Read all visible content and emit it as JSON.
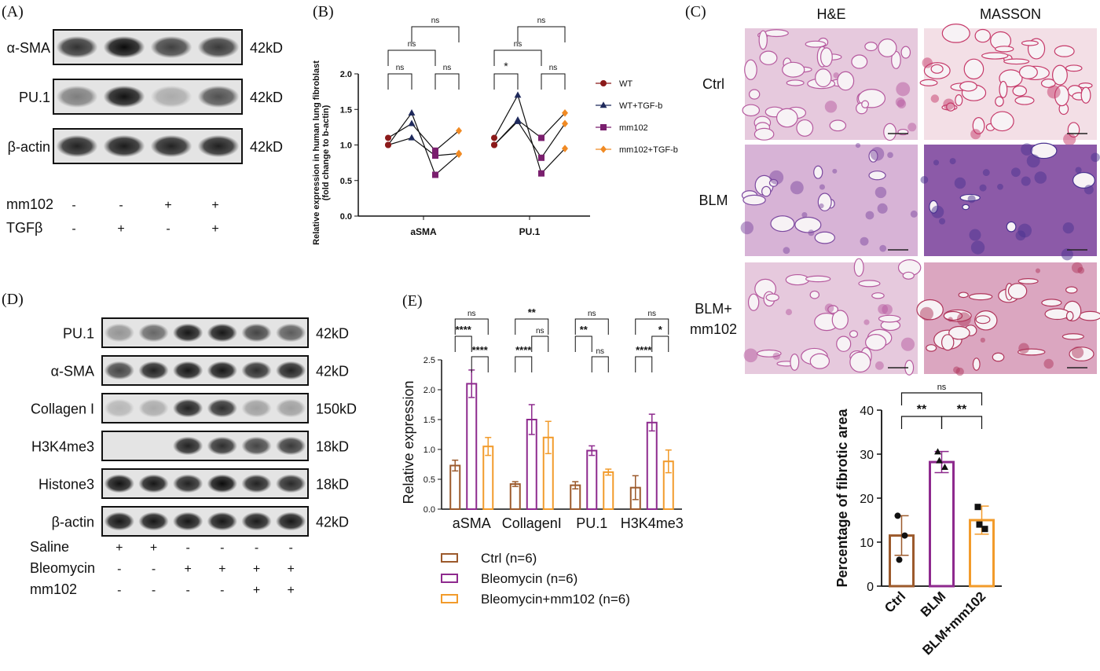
{
  "panels": {
    "A": "(A)",
    "B": "(B)",
    "C": "(C)",
    "D": "(D)",
    "E": "(E)"
  },
  "panel_a": {
    "bands": [
      {
        "label": "α-SMA",
        "size": "42kD",
        "intensity": [
          0.78,
          0.95,
          0.72,
          0.75
        ]
      },
      {
        "label": "PU.1",
        "size": "42kD",
        "intensity": [
          0.45,
          0.92,
          0.25,
          0.65
        ]
      },
      {
        "label": "β-actin",
        "size": "42kD",
        "intensity": [
          0.85,
          0.88,
          0.85,
          0.86
        ]
      }
    ],
    "conditions": [
      {
        "label": "mm102",
        "marks": [
          "-",
          "-",
          "+",
          "+"
        ]
      },
      {
        "label": "TGFβ",
        "marks": [
          "-",
          "+",
          "-",
          "+"
        ]
      }
    ]
  },
  "panel_d": {
    "bands": [
      {
        "label": "PU.1",
        "size": "42kD",
        "intensity": [
          0.35,
          0.55,
          0.9,
          0.9,
          0.7,
          0.6
        ]
      },
      {
        "label": "α-SMA",
        "size": "42kD",
        "intensity": [
          0.7,
          0.85,
          0.9,
          0.9,
          0.8,
          0.85
        ]
      },
      {
        "label": "Collagen I",
        "size": "150kD",
        "intensity": [
          0.2,
          0.25,
          0.85,
          0.8,
          0.3,
          0.3
        ]
      },
      {
        "label": "H3K4me3",
        "size": "18kD",
        "intensity": [
          0.02,
          0.02,
          0.85,
          0.8,
          0.7,
          0.75
        ]
      },
      {
        "label": "Histone3",
        "size": "18kD",
        "intensity": [
          0.92,
          0.9,
          0.85,
          0.95,
          0.85,
          0.82
        ]
      },
      {
        "label": "β-actin",
        "size": "42kD",
        "intensity": [
          0.9,
          0.9,
          0.9,
          0.9,
          0.88,
          0.9
        ]
      }
    ],
    "conditions": [
      {
        "label": "Saline",
        "marks": [
          "+",
          "+",
          "-",
          "-",
          "-",
          "-"
        ]
      },
      {
        "label": "Bleomycin",
        "marks": [
          "-",
          "-",
          "+",
          "+",
          "+",
          "+"
        ]
      },
      {
        "label": "mm102",
        "marks": [
          "-",
          "-",
          "-",
          "-",
          "+",
          "+"
        ]
      }
    ]
  },
  "panel_c": {
    "columns": [
      "H&E",
      "MASSON"
    ],
    "rows": [
      "Ctrl",
      "BLM",
      "BLM+\nmm102"
    ]
  },
  "chart_data": [
    {
      "id": "B",
      "type": "scatter",
      "ylabel": "Relative expression in human lung fibroblast\n(fold change to b-actin)",
      "ylim": [
        0,
        2.0
      ],
      "yticks": [
        "0.0",
        "0.5",
        "1.0",
        "1.5",
        "2.0"
      ],
      "categories": [
        "aSMA",
        "PU.1"
      ],
      "series": [
        {
          "name": "WT",
          "color": "#8b1a1a",
          "marker": "circle",
          "values": [
            [
              1.0,
              1.1,
              1.0
            ],
            [
              1.0,
              1.1,
              1.0
            ]
          ]
        },
        {
          "name": "WT+TGF-b",
          "color": "#1f2a5c",
          "marker": "triangle",
          "values": [
            [
              1.1,
              1.3,
              1.45
            ],
            [
              1.35,
              1.7,
              1.33
            ]
          ]
        },
        {
          "name": "mm102",
          "color": "#7a1f6e",
          "marker": "square",
          "values": [
            [
              0.85,
              0.92,
              0.58
            ],
            [
              1.1,
              0.6,
              0.82
            ]
          ]
        },
        {
          "name": "mm102+TGF-b",
          "color": "#f08a24",
          "marker": "diamond",
          "values": [
            [
              0.88,
              1.2,
              0.87
            ],
            [
              1.45,
              0.95,
              1.3
            ]
          ]
        }
      ],
      "significance": [
        {
          "cat": 0,
          "from": 0,
          "to": 1,
          "label": "ns",
          "level": 0
        },
        {
          "cat": 0,
          "from": 2,
          "to": 3,
          "label": "ns",
          "level": 0
        },
        {
          "cat": 0,
          "from": 0,
          "to": 2,
          "label": "ns",
          "level": 1
        },
        {
          "cat": 0,
          "from": 1,
          "to": 3,
          "label": "ns",
          "level": 2
        },
        {
          "cat": 1,
          "from": 0,
          "to": 1,
          "label": "*",
          "level": 0
        },
        {
          "cat": 1,
          "from": 2,
          "to": 3,
          "label": "ns",
          "level": 0
        },
        {
          "cat": 1,
          "from": 0,
          "to": 2,
          "label": "ns",
          "level": 1
        },
        {
          "cat": 1,
          "from": 1,
          "to": 3,
          "label": "ns",
          "level": 2
        }
      ]
    },
    {
      "id": "E",
      "type": "bar",
      "ylabel": "Relative expression",
      "ylim": [
        0,
        2.5
      ],
      "yticks": [
        "0.0",
        "0.5",
        "1.0",
        "1.5",
        "2.0",
        "2.5"
      ],
      "categories": [
        "aSMA",
        "CollagenI",
        "PU.1",
        "H3K4me3"
      ],
      "series": [
        {
          "name": "Ctrl (n=6)",
          "color": "#9c5a2c",
          "values": [
            0.73,
            0.42,
            0.4,
            0.36
          ],
          "errors": [
            0.09,
            0.04,
            0.06,
            0.2
          ]
        },
        {
          "name": "Bleomycin (n=6)",
          "color": "#8e2a8e",
          "values": [
            2.1,
            1.5,
            0.98,
            1.45
          ],
          "errors": [
            0.23,
            0.25,
            0.08,
            0.14
          ]
        },
        {
          "name": "Bleomycin+mm102 (n=6)",
          "color": "#f29b2b",
          "values": [
            1.05,
            1.2,
            0.62,
            0.8
          ],
          "errors": [
            0.15,
            0.27,
            0.05,
            0.19
          ]
        }
      ],
      "significance": [
        {
          "cat": 0,
          "from": 0,
          "to": 1,
          "label": "****",
          "level": 1
        },
        {
          "cat": 0,
          "from": 1,
          "to": 2,
          "label": "****",
          "level": 0
        },
        {
          "cat": 0,
          "from": 0,
          "to": 2,
          "label": "ns",
          "level": 2
        },
        {
          "cat": 1,
          "from": 0,
          "to": 1,
          "label": "****",
          "level": 0
        },
        {
          "cat": 1,
          "from": 1,
          "to": 2,
          "label": "ns",
          "level": 1
        },
        {
          "cat": 1,
          "from": 0,
          "to": 2,
          "label": "**",
          "level": 2
        },
        {
          "cat": 2,
          "from": 0,
          "to": 1,
          "label": "**",
          "level": 1
        },
        {
          "cat": 2,
          "from": 1,
          "to": 2,
          "label": "ns",
          "level": 0
        },
        {
          "cat": 2,
          "from": 0,
          "to": 2,
          "label": "ns",
          "level": 2
        },
        {
          "cat": 3,
          "from": 0,
          "to": 1,
          "label": "****",
          "level": 0
        },
        {
          "cat": 3,
          "from": 1,
          "to": 2,
          "label": "*",
          "level": 1
        },
        {
          "cat": 3,
          "from": 0,
          "to": 2,
          "label": "ns",
          "level": 2
        }
      ]
    },
    {
      "id": "C-bar",
      "type": "bar",
      "ylabel": "Percentage of fibrotic area",
      "ylim": [
        0,
        40
      ],
      "yticks": [
        "0",
        "10",
        "20",
        "30",
        "40"
      ],
      "categories": [
        "Ctrl",
        "BLM",
        "BLM+mm102"
      ],
      "series": [
        {
          "name": "",
          "colors": [
            "#9c5a2c",
            "#8e2a8e",
            "#f29b2b"
          ],
          "values": [
            11.5,
            28.2,
            15.0
          ],
          "errors": [
            4.5,
            2.4,
            3.2
          ],
          "points": [
            [
              16,
              11.5,
              6
            ],
            [
              30.5,
              27,
              28.5
            ],
            [
              18,
              13,
              14
            ]
          ],
          "markers": [
            "circle",
            "triangle",
            "square"
          ]
        }
      ],
      "significance": [
        {
          "from": 0,
          "to": 1,
          "label": "**",
          "level": 0
        },
        {
          "from": 1,
          "to": 2,
          "label": "**",
          "level": 0
        },
        {
          "from": 0,
          "to": 2,
          "label": "ns",
          "level": 1
        }
      ]
    }
  ]
}
